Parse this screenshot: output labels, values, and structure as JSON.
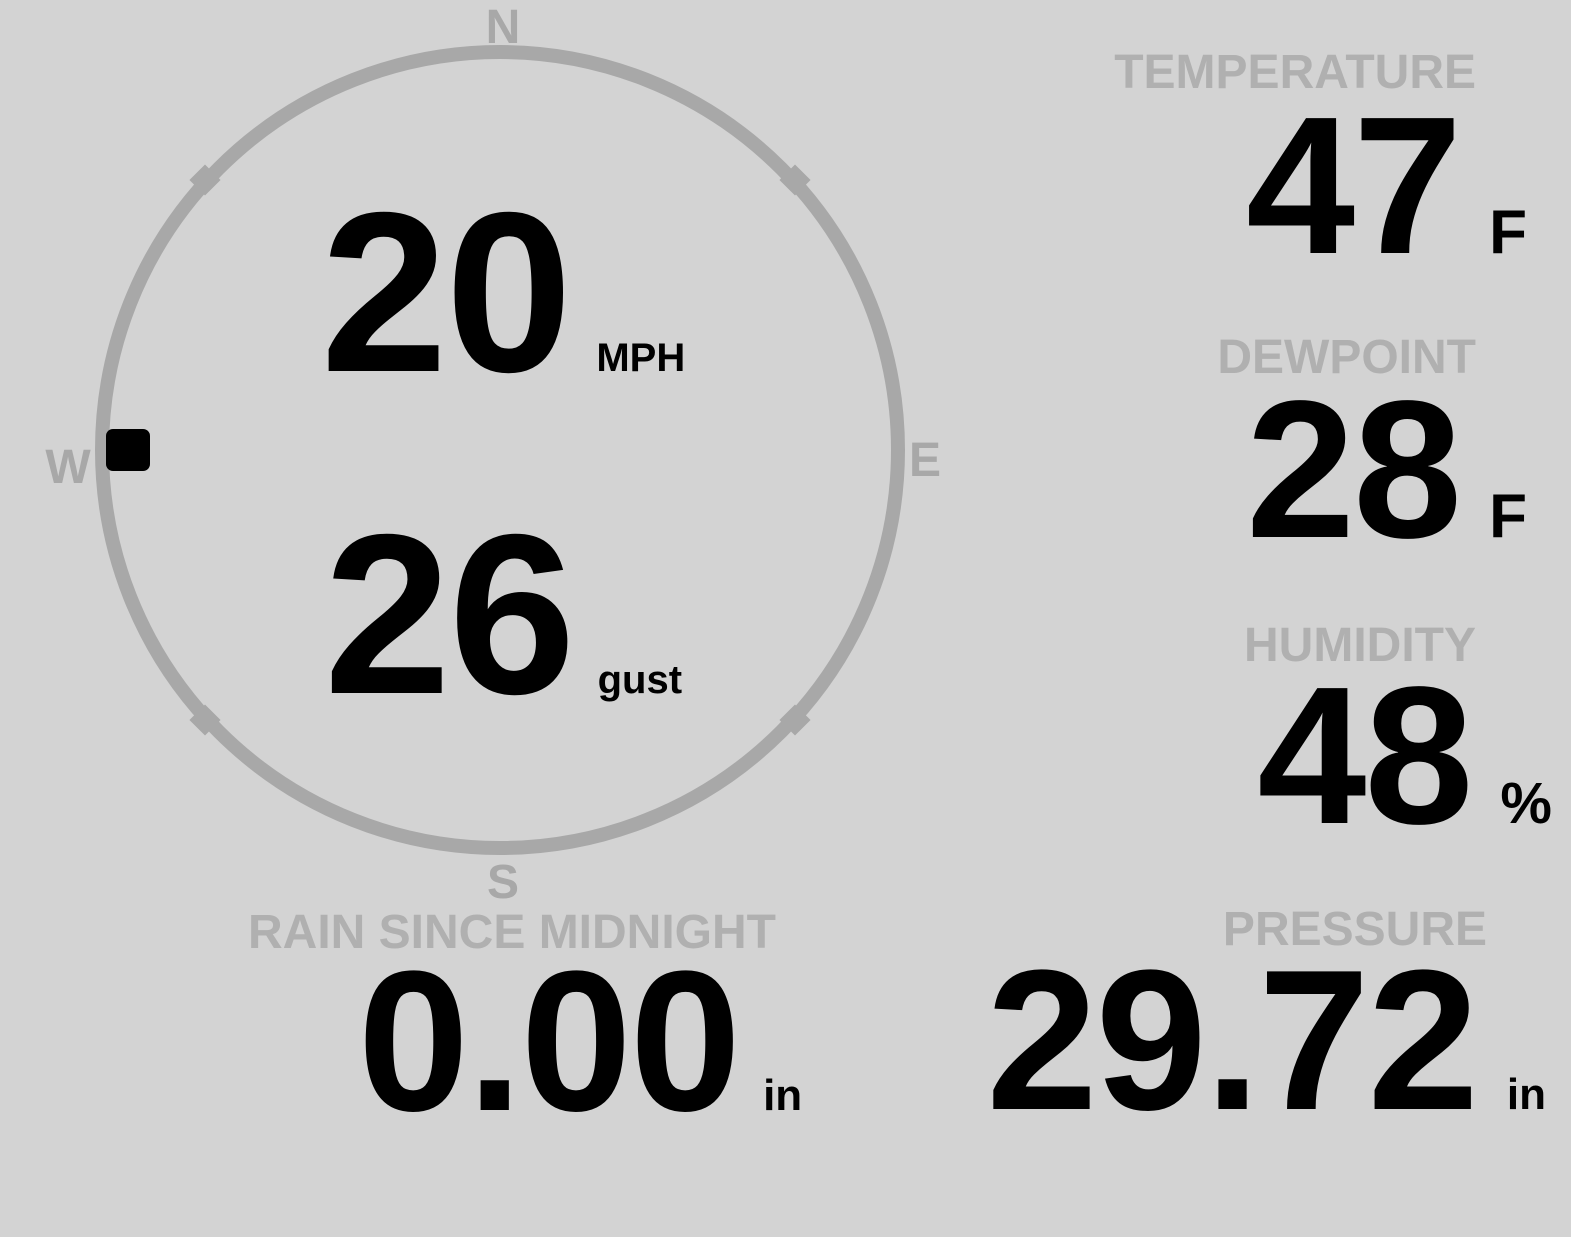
{
  "theme": {
    "background": "#d3d3d3",
    "value_color": "#000000",
    "label_color": "#b0b0b0",
    "ring_color": "#a8a8a8",
    "marker_color": "#000000"
  },
  "compass": {
    "north_label": "N",
    "east_label": "E",
    "south_label": "S",
    "west_label": "W"
  },
  "wind": {
    "speed_value": "20",
    "speed_unit": "MPH",
    "gust_value": "26",
    "gust_unit": "gust",
    "direction_degrees": 270
  },
  "temperature": {
    "label": "TEMPERATURE",
    "value": "47",
    "unit": "F"
  },
  "dewpoint": {
    "label": "DEWPOINT",
    "value": "28",
    "unit": "F"
  },
  "humidity": {
    "label": "HUMIDITY",
    "value": "48",
    "unit": "%"
  },
  "rain": {
    "label": "RAIN SINCE MIDNIGHT",
    "value": "0.00",
    "unit": "in"
  },
  "pressure": {
    "label": "PRESSURE",
    "value": "29.72",
    "unit": "in"
  }
}
